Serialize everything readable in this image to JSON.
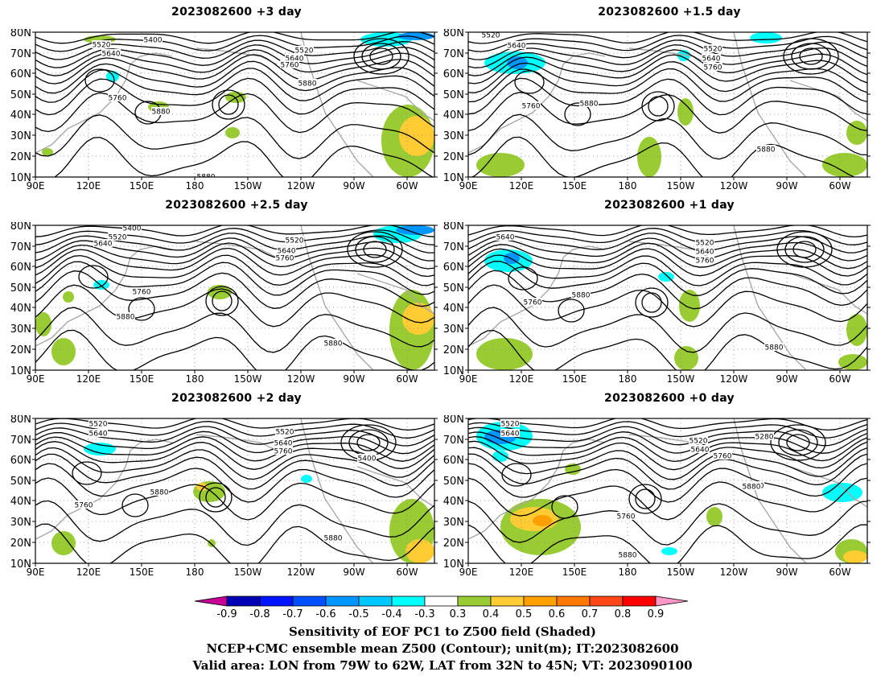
{
  "panels": [
    {
      "title": "2023082600 +3 day"
    },
    {
      "title": "2023082600 +1.5 day"
    },
    {
      "title": "2023082600 +2.5 day"
    },
    {
      "title": "2023082600 +1 day"
    },
    {
      "title": "2023082600 +2 day"
    },
    {
      "title": "2023082600 +0 day"
    }
  ],
  "axes": {
    "lat_ticks": [
      "10N",
      "20N",
      "30N",
      "40N",
      "50N",
      "60N",
      "70N",
      "80N"
    ],
    "lon_ticks": [
      "90E",
      "120E",
      "150E",
      "180",
      "150W",
      "120W",
      "90W",
      "60W"
    ]
  },
  "colorbar": {
    "labels": [
      "-0.9",
      "-0.8",
      "-0.7",
      "-0.6",
      "-0.5",
      "-0.4",
      "-0.3",
      "0.3",
      "0.4",
      "0.5",
      "0.6",
      "0.7",
      "0.8",
      "0.9"
    ],
    "colors": [
      "#c80096",
      "#0000b4",
      "#0014ff",
      "#0050ff",
      "#0096ff",
      "#00c8ff",
      "#00ffff",
      "#ffffff",
      "#99cc33",
      "#ffcc33",
      "#ffa000",
      "#ff7800",
      "#ff4614",
      "#ff0000",
      "#ff96c8"
    ]
  },
  "caption": {
    "line1": "Sensitivity of EOF PC1 to Z500 field (Shaded)",
    "line2": "NCEP+CMC ensemble mean Z500 (Contour); unit(m); IT:2023082600",
    "line3": "Valid area: LON from 79W to 62W, LAT from 32N to 45N; VT: 2023090100"
  },
  "contour_labels": {
    "p0": [
      "5400",
      "5520",
      "5640",
      "5520",
      "5640",
      "5760",
      "5880",
      "5760",
      "5880",
      "5880"
    ],
    "p1": [
      "5520",
      "5640",
      "5520",
      "5640",
      "5760",
      "5760",
      "5880",
      "5880"
    ],
    "p2": [
      "5400",
      "5520",
      "5640",
      "5520",
      "5640",
      "5760",
      "5760",
      "5880",
      "5880"
    ],
    "p3": [
      "5640",
      "5520",
      "5640",
      "5760",
      "5760",
      "5880",
      "5880"
    ],
    "p4": [
      "5520",
      "5640",
      "5520",
      "5640",
      "5760",
      "5400",
      "5880",
      "5760",
      "5880"
    ],
    "p5": [
      "5520",
      "5640",
      "5520",
      "5640",
      "5760",
      "5280",
      "5880",
      "5760",
      "5880",
      "5880"
    ]
  }
}
